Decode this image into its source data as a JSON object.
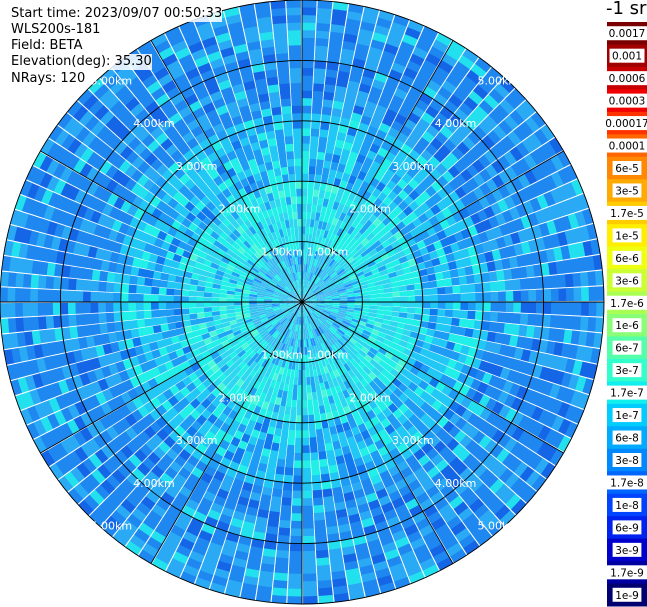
{
  "header": {
    "start_time": "Start time: 2023/09/07 00:50:33",
    "instrument": "WLS200s-181",
    "field": "Field: BETA",
    "elevation": "Elevation(deg): 35.30",
    "nrays": "NRays: 120"
  },
  "chart_data": {
    "type": "heatmap",
    "projection": "polar",
    "title": "",
    "max_range_km": 5.0,
    "range_ring_labels": [
      "1.00km",
      "2.00km",
      "3.00km",
      "4.00km",
      "5.00km"
    ],
    "n_rays": 120,
    "colorbar": {
      "unit_label": "-1 sr",
      "tick_labels": [
        "0.0017",
        "0.001",
        "0.0006",
        "0.0003",
        "0.00017",
        "0.0001",
        "6e-5",
        "3e-5",
        "1.7e-5",
        "1e-5",
        "6e-6",
        "3e-6",
        "1.7e-6",
        "1e-6",
        "6e-7",
        "3e-7",
        "1.7e-7",
        "1e-7",
        "6e-8",
        "3e-8",
        "1.7e-8",
        "1e-8",
        "6e-9",
        "3e-9",
        "1.7e-9",
        "1e-9"
      ],
      "colors": [
        "#7a0000",
        "#a00000",
        "#c80000",
        "#f00000",
        "#ff3300",
        "#ff6600",
        "#ff8800",
        "#ffaa00",
        "#ffcc00",
        "#ffee00",
        "#eeff11",
        "#ccff33",
        "#aaff55",
        "#88ff77",
        "#55ffaa",
        "#33ffcc",
        "#11eeee",
        "#00ccff",
        "#00aaff",
        "#0088ff",
        "#0066ff",
        "#0044ff",
        "#0022ee",
        "#0000cc",
        "#0000a0",
        "#000070"
      ]
    }
  }
}
